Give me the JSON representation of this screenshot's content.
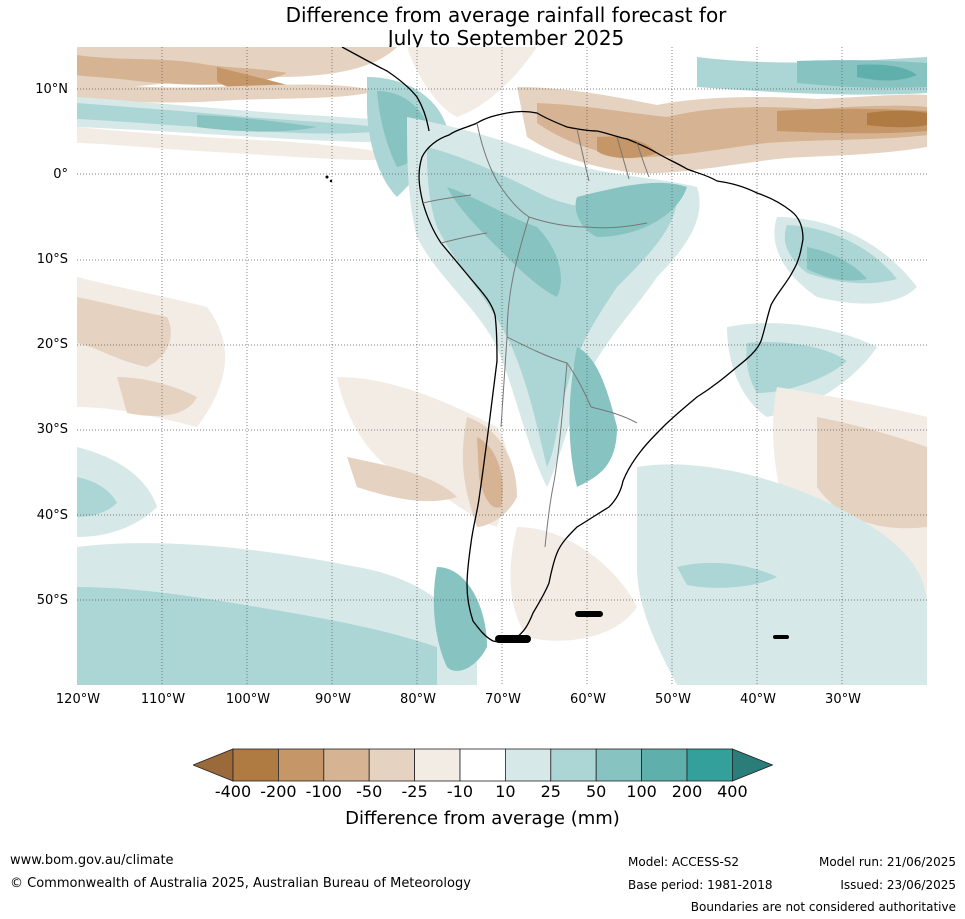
{
  "title": {
    "line1": "Difference from average rainfall forecast for",
    "line2": "July to September 2025"
  },
  "latitude_labels": [
    "10°N",
    "0°",
    "10°S",
    "20°S",
    "30°S",
    "40°S",
    "50°S"
  ],
  "longitude_labels": [
    "120°W",
    "110°W",
    "100°W",
    "90°W",
    "80°W",
    "70°W",
    "60°W",
    "50°W",
    "40°W",
    "30°W"
  ],
  "colorbar": {
    "ticks": [
      "-400",
      "-200",
      "-100",
      "-50",
      "-25",
      "-10",
      "10",
      "25",
      "50",
      "100",
      "200",
      "400"
    ],
    "colors": [
      "#b07a43",
      "#c49668",
      "#d6b393",
      "#e6d2c0",
      "#f3ece5",
      "#ffffff",
      "#d6e9e8",
      "#abd6d5",
      "#86c3c1",
      "#5fb0ad",
      "#34a09b"
    ],
    "under_color": "#9b6a3a",
    "over_color": "#2a7d78",
    "label": "Difference from average (mm)"
  },
  "footer": {
    "website": "www.bom.gov.au/climate",
    "copyright": "© Commonwealth of Australia 2025, Australian Bureau of Meteorology",
    "model": "Model: ACCESS-S2",
    "base_period": "Base period: 1981-2018",
    "model_run": "Model run: 21/06/2025",
    "issued": "Issued: 23/06/2025",
    "disclaimer": "Boundaries are not considered authoritative"
  }
}
